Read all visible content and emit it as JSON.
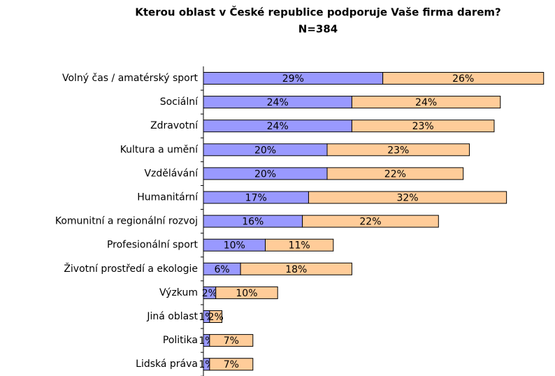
{
  "chart_data": {
    "type": "stacked-bar-horizontal",
    "title": "Kterou oblast v České republice podporuje Vaše firma darem?",
    "subtitle": "N=384",
    "categories": [
      "Volný čas / amatérský sport",
      "Sociální",
      "Zdravotní",
      "Kultura a umění",
      "Vzdělávání",
      "Humanitární",
      "Komunitní a regionální rozvoj",
      "Profesionální sport",
      "Životní prostředí a ekologie",
      "Výzkum",
      "Jiná oblast",
      "Politika",
      "Lidská práva"
    ],
    "series": [
      {
        "color": "#9999ff",
        "values": [
          29,
          24,
          24,
          20,
          20,
          17,
          16,
          10,
          6,
          2,
          1,
          1,
          1
        ],
        "value_labels": [
          "29%",
          "24%",
          "24%",
          "20%",
          "20%",
          "17%",
          "16%",
          "10%",
          "6%",
          "2%",
          "1%",
          "1%",
          "1%"
        ]
      },
      {
        "color": "#ffcc99",
        "values": [
          26,
          24,
          23,
          23,
          22,
          32,
          22,
          11,
          18,
          10,
          2,
          7,
          7
        ],
        "value_labels": [
          "26%",
          "24%",
          "23%",
          "23%",
          "22%",
          "32%",
          "22%",
          "11%",
          "18%",
          "10%",
          "2%",
          "7%",
          "7%"
        ]
      }
    ]
  }
}
